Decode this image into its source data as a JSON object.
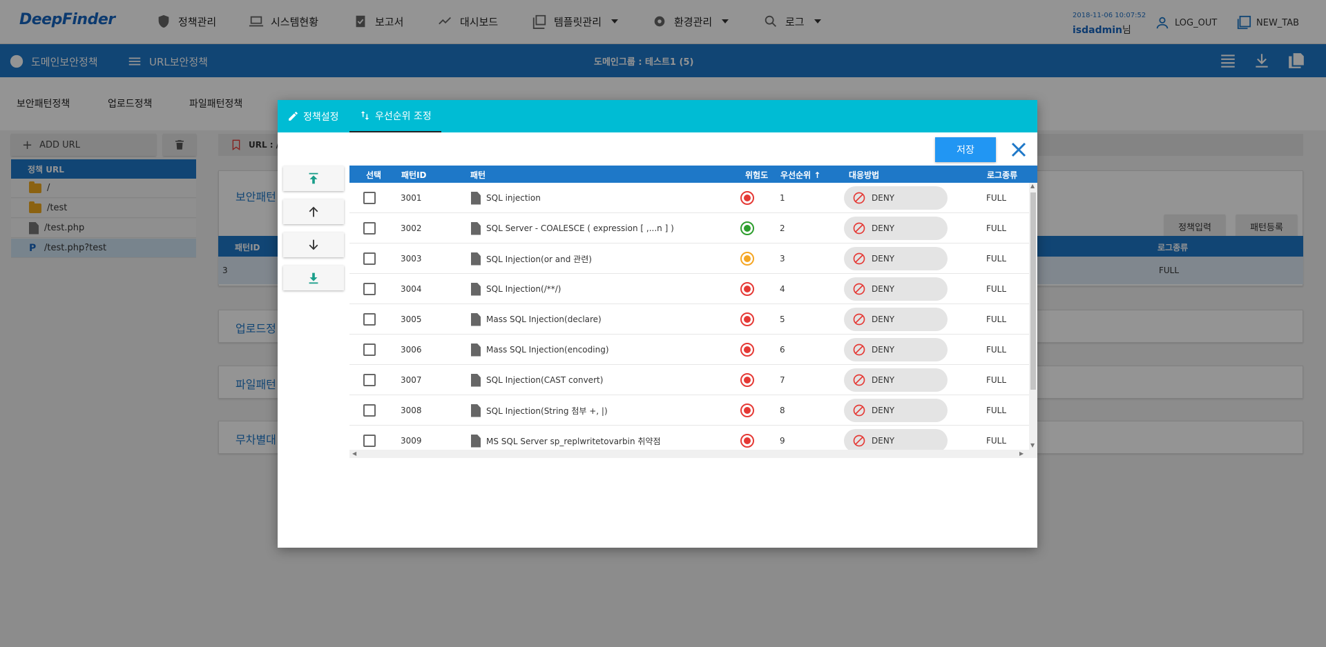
{
  "header": {
    "logo_text": "DeepFinder",
    "nav": [
      {
        "label": "정책관리",
        "icon": "shield-icon"
      },
      {
        "label": "시스템현황",
        "icon": "monitor-icon"
      },
      {
        "label": "보고서",
        "icon": "clipboard-check-icon"
      },
      {
        "label": "대시보드",
        "icon": "trend-icon"
      },
      {
        "label": "템플릿관리",
        "icon": "library-icon"
      },
      {
        "label": "환경관리",
        "icon": "gear-icon"
      },
      {
        "label": "로그",
        "icon": "search-icon"
      }
    ],
    "datetime": "2018-11-06 10:07:52",
    "username": "isdadmin",
    "user_suffix": "님",
    "logout_label": "LOG_OUT",
    "newtab_label": "NEW_TAB"
  },
  "subbar": {
    "domain_policy": "도메인보안정책",
    "url_policy": "URL보안정책",
    "domain_group": "도메인그룹 : 테스트1 (5)"
  },
  "policy_tabs": [
    "보안패턴정책",
    "업로드정책",
    "파일패턴정책"
  ],
  "left": {
    "add_url_label": "ADD URL",
    "tree_header": "정책 URL",
    "items": [
      {
        "label": "/",
        "type": "folder"
      },
      {
        "label": "/test",
        "type": "folder"
      },
      {
        "label": "/test.php",
        "type": "file"
      },
      {
        "label": "/test.php?test",
        "type": "param",
        "prefix": "P"
      }
    ]
  },
  "background": {
    "url_label": "URL : /t",
    "sections": [
      "보안패턴",
      "업로드정",
      "파일패턴",
      "무차별대"
    ],
    "policy_input_button": "정책입력",
    "pattern_register_button": "패턴등록",
    "col_pattern_id": "패턴ID",
    "col_log_type": "로그종류",
    "row_id": "3",
    "row_log": "FULL"
  },
  "modal": {
    "tabs": [
      {
        "label": "정책설정",
        "icon": "pencil-icon"
      },
      {
        "label": "우선순위 조정",
        "icon": "sort-arrows-icon"
      }
    ],
    "save_label": "저장",
    "columns": {
      "select": "선택",
      "pattern_id": "패턴ID",
      "pattern": "패턴",
      "risk": "위험도",
      "priority": "우선순위",
      "action": "대응방법",
      "log_type": "로그종류"
    },
    "rows": [
      {
        "id": "3001",
        "pattern": "SQL injection",
        "risk": "high",
        "risk_color": "#e53935",
        "priority": "1",
        "action": "DENY",
        "log": "FULL"
      },
      {
        "id": "3002",
        "pattern": "SQL Server - COALESCE ( expression [ ,...n ] )",
        "risk": "low",
        "risk_color": "#2e9e2e",
        "priority": "2",
        "action": "DENY",
        "log": "FULL"
      },
      {
        "id": "3003",
        "pattern": "SQL Injection(or and 관련)",
        "risk": "medium",
        "risk_color": "#f5a623",
        "priority": "3",
        "action": "DENY",
        "log": "FULL"
      },
      {
        "id": "3004",
        "pattern": "SQL Injection(/**/)",
        "risk": "high",
        "risk_color": "#e53935",
        "priority": "4",
        "action": "DENY",
        "log": "FULL"
      },
      {
        "id": "3005",
        "pattern": "Mass SQL Injection(declare)",
        "risk": "high",
        "risk_color": "#e53935",
        "priority": "5",
        "action": "DENY",
        "log": "FULL"
      },
      {
        "id": "3006",
        "pattern": "Mass SQL Injection(encoding)",
        "risk": "high",
        "risk_color": "#e53935",
        "priority": "6",
        "action": "DENY",
        "log": "FULL"
      },
      {
        "id": "3007",
        "pattern": "SQL Injection(CAST convert)",
        "risk": "high",
        "risk_color": "#e53935",
        "priority": "7",
        "action": "DENY",
        "log": "FULL"
      },
      {
        "id": "3008",
        "pattern": "SQL Injection(String 첨부 +, |)",
        "risk": "high",
        "risk_color": "#e53935",
        "priority": "8",
        "action": "DENY",
        "log": "FULL"
      },
      {
        "id": "3009",
        "pattern": "MS SQL Server sp_replwritetovarbin 취약점",
        "risk": "high",
        "risk_color": "#e53935",
        "priority": "9",
        "action": "DENY",
        "log": "FULL"
      }
    ]
  },
  "colors": {
    "primary": "#1e78c8",
    "modal_tab_bg": "#00bcd4",
    "save_button": "#2196f3",
    "move_icon": "#1a9e8a",
    "deny_icon": "#e53935"
  }
}
